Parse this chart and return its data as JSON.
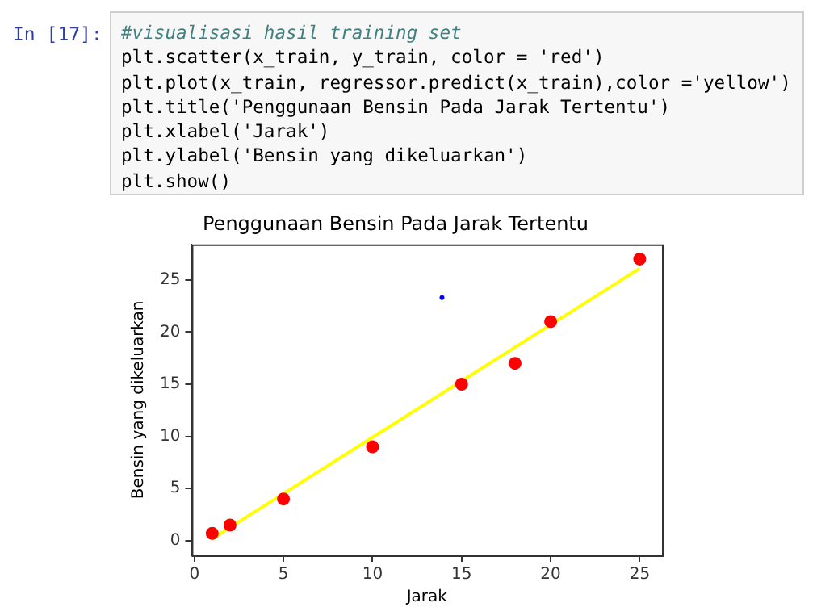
{
  "chart_data": {
    "type": "scatter",
    "title": "Penggunaan Bensin Pada Jarak Tertentu",
    "xlabel": "Jarak",
    "ylabel": "Bensin yang dikeluarkan",
    "annotations": [
      "In [17]:",
      "#visualisasi hasil training set",
      "plt.scatter(x_train, y_train, color = 'red')",
      "plt.plot(x_train, regressor.predict(x_train),color ='yellow')",
      "plt.title('Penggunaan Bensin Pada Jarak Tertentu')",
      "plt.xlabel('Jarak')",
      "plt.ylabel('Bensin yang dikeluarkan')",
      "plt.show()"
    ],
    "series": [
      {
        "type": "scatter",
        "color": "#ff0000",
        "x": [
          1,
          2,
          5,
          10,
          15,
          18,
          20,
          25
        ],
        "values": [
          0.7,
          1.5,
          4,
          9,
          15,
          17,
          21,
          27
        ]
      },
      {
        "type": "line",
        "color": "#ffff00",
        "x": [
          1,
          25
        ],
        "values": [
          0.2,
          26.1
        ],
        "marker": "none"
      },
      {
        "type": "scatter",
        "color": "#0000ff",
        "x": [
          13.9
        ],
        "values": [
          23.3
        ]
      }
    ],
    "marker": "circle",
    "grid": false,
    "legend": false,
    "xlim": [
      -0.15,
      26.25
    ],
    "ylim": [
      -1.4,
      28.4
    ],
    "xticks": [
      0,
      5,
      10,
      15,
      20,
      25
    ],
    "yticks": [
      0,
      5,
      10,
      15,
      20,
      25
    ]
  }
}
